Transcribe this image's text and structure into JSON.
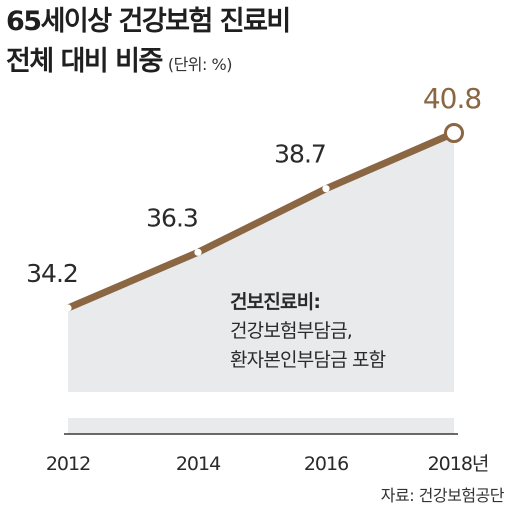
{
  "title": {
    "line1": "65세이상 건강보험 진료비",
    "line2": "전체 대비 비중",
    "unit": "(단위: %)"
  },
  "note": {
    "title": "건보진료비:",
    "lines": [
      "건강보험부담금,",
      "환자본인부담금 포함"
    ]
  },
  "source": "자료: 건강보험공단",
  "colors": {
    "line": "#8a6642",
    "highlight_label": "#8a6642",
    "area": "#e9eaeb",
    "axis": "#3a3a3a"
  },
  "chart_data": {
    "type": "line",
    "categories": [
      "2012",
      "2014",
      "2016",
      "2018년"
    ],
    "values": [
      34.2,
      36.3,
      38.7,
      40.8
    ],
    "data_labels": [
      "34.2",
      "36.3",
      "38.7",
      "40.8"
    ],
    "highlight_last": true,
    "area_fill": true,
    "grid": false,
    "title": "65세이상 건강보험 진료비 전체 대비 비중",
    "xlabel": "",
    "ylabel": "",
    "unit": "%"
  }
}
